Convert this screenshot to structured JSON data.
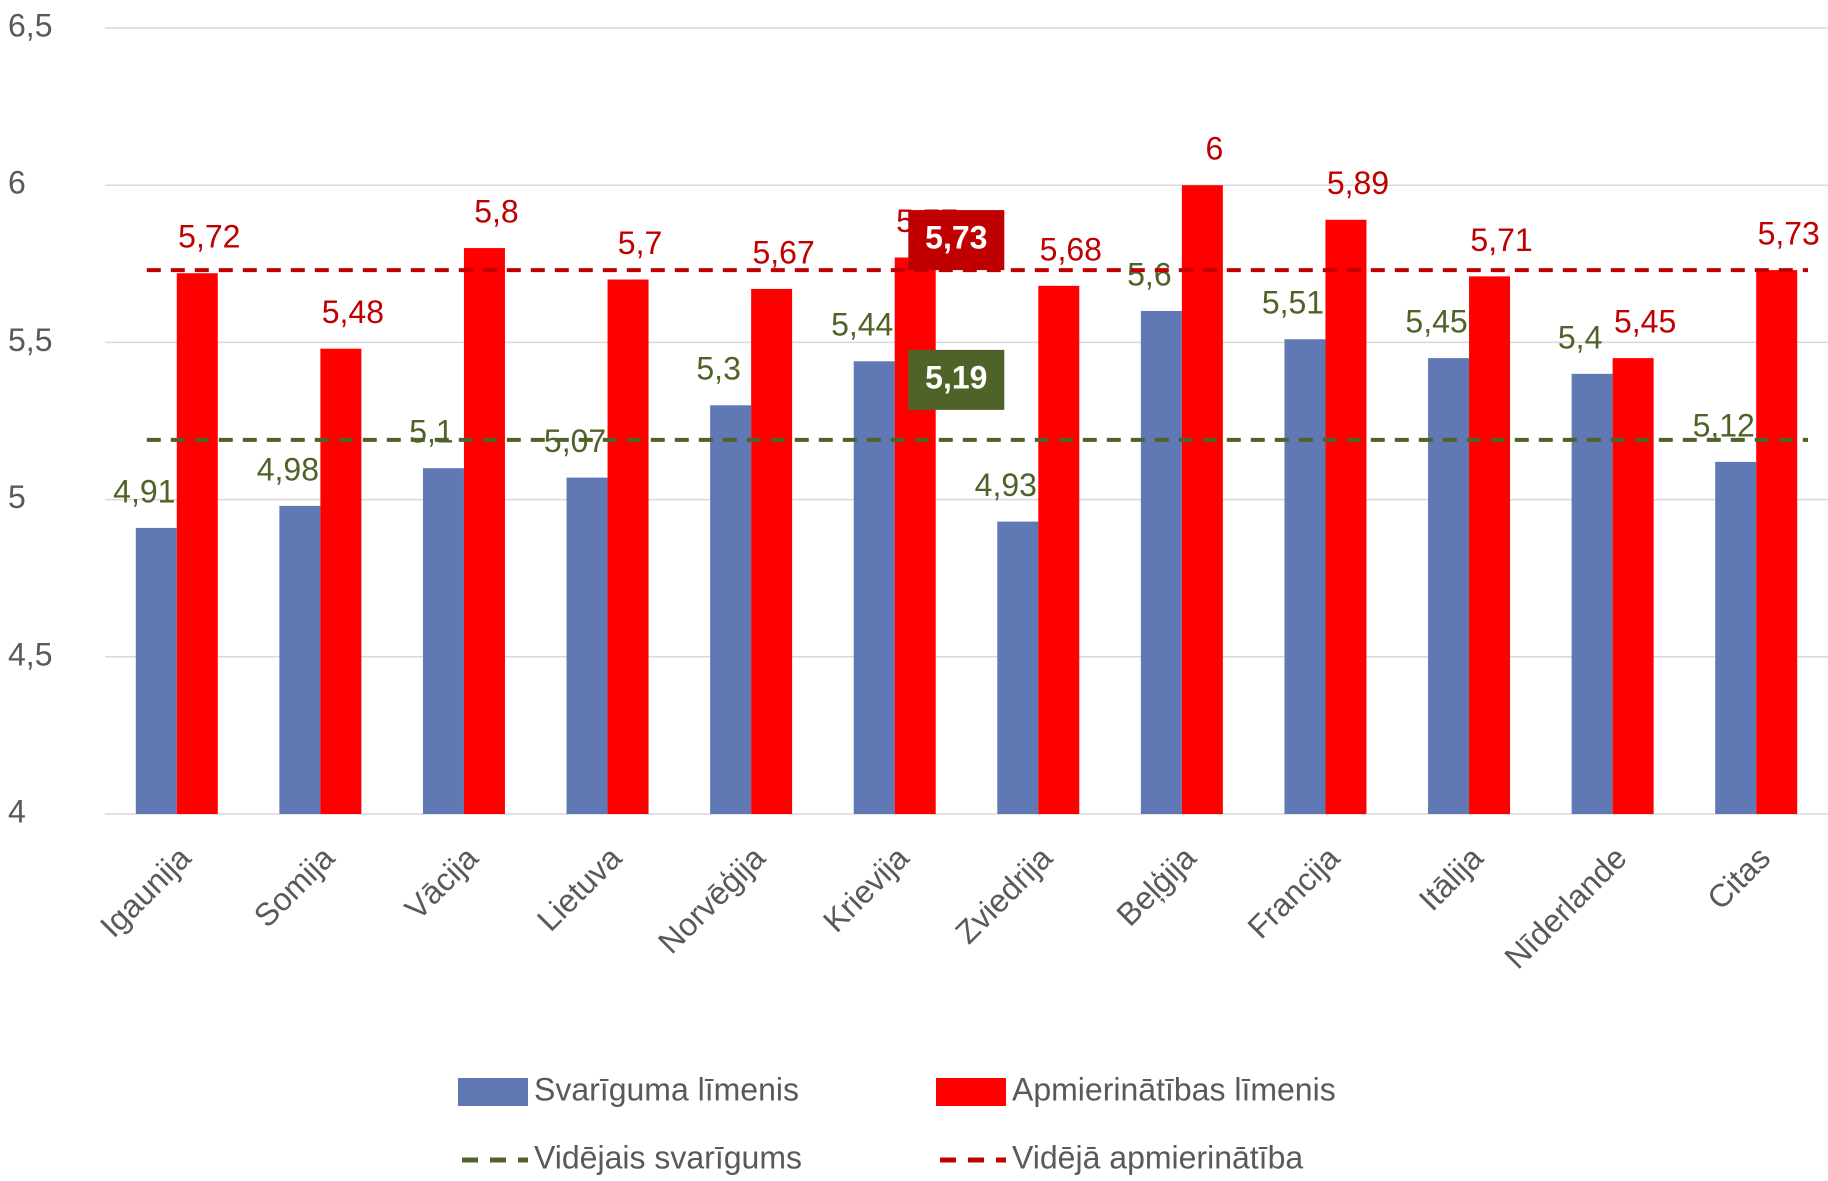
{
  "chart_data": {
    "type": "bar",
    "categories": [
      "Igaunija",
      "Somija",
      "Vācija",
      "Lietuva",
      "Norvēģija",
      "Krievija",
      "Zviedrija",
      "Beļģija",
      "Francija",
      "Itālija",
      "Nīderlande",
      "Citas"
    ],
    "series": [
      {
        "name": "Svarīguma līmenis",
        "color": "#6078b4",
        "label_color": "#4f6228",
        "values": [
          4.91,
          4.98,
          5.1,
          5.07,
          5.3,
          5.44,
          4.93,
          5.6,
          5.51,
          5.45,
          5.4,
          5.12
        ],
        "value_labels": [
          "4,91",
          "4,98",
          "5,1",
          "5,07",
          "5,3",
          "5,44",
          "4,93",
          "5,6",
          "5,51",
          "5,45",
          "5,4",
          "5,12"
        ]
      },
      {
        "name": "Apmierinātības līmenis",
        "color": "#ff0000",
        "label_color": "#c00000",
        "values": [
          5.72,
          5.48,
          5.8,
          5.7,
          5.67,
          5.77,
          5.68,
          6,
          5.89,
          5.71,
          5.45,
          5.73
        ],
        "value_labels": [
          "5,72",
          "5,48",
          "5,8",
          "5,7",
          "5,67",
          "5,77",
          "5,68",
          "6",
          "5,89",
          "5,71",
          "5,45",
          "5,73"
        ]
      }
    ],
    "reference_lines": [
      {
        "name": "Vidējais svarīgums",
        "color": "#4f6228",
        "value": 5.19,
        "value_label": "5,19"
      },
      {
        "name": "Vidējā apmierinātība",
        "color": "#c00000",
        "value": 5.73,
        "value_label": "5,73"
      }
    ],
    "ylim": [
      4,
      6.5
    ],
    "yticks": [
      4,
      {
        "value": 4.5,
        "label": "4,5"
      },
      5,
      {
        "value": 5.5,
        "label": "5,5"
      },
      6,
      {
        "value": 6.5,
        "label": "6,5"
      }
    ],
    "grid": true
  }
}
